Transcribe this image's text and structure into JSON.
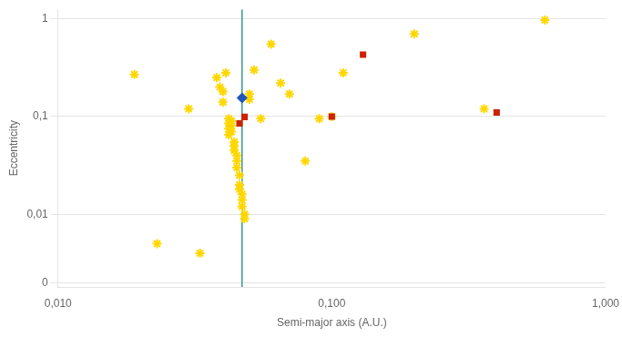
{
  "chart_data": {
    "type": "scatter",
    "xlabel": "Semi-major axis (A.U.)",
    "ylabel": "Eccentricity",
    "log": true,
    "xlim": [
      0.01,
      1.0
    ],
    "ylim": [
      0.0018,
      1.25
    ],
    "xticks": [
      {
        "value": 0.01,
        "label": "0,010"
      },
      {
        "value": 0.1,
        "label": "0,100"
      },
      {
        "value": 1.0,
        "label": "1,000"
      }
    ],
    "yticks": [
      {
        "value": 0.002,
        "label": "0"
      },
      {
        "value": 0.01,
        "label": "0,01"
      },
      {
        "value": 0.1,
        "label": "0,1"
      },
      1
    ],
    "grid": "y",
    "series": [
      {
        "color": "#FFD700",
        "marker": "star",
        "x": [
          0.019,
          0.023,
          0.03,
          0.033,
          0.038,
          0.039,
          0.04,
          0.04,
          0.041,
          0.042,
          0.042,
          0.042,
          0.042,
          0.043,
          0.043,
          0.043,
          0.044,
          0.044,
          0.044,
          0.045,
          0.045,
          0.045,
          0.046,
          0.046,
          0.046,
          0.047,
          0.047,
          0.047,
          0.048,
          0.048,
          0.05,
          0.05,
          0.052,
          0.055,
          0.06,
          0.065,
          0.07,
          0.08,
          0.09,
          0.1,
          0.11,
          0.2,
          0.36,
          0.6
        ],
        "values": [
          0.27,
          0.005,
          0.12,
          0.004,
          0.25,
          0.2,
          0.18,
          0.14,
          0.28,
          0.095,
          0.085,
          0.075,
          0.065,
          0.09,
          0.08,
          0.07,
          0.055,
          0.05,
          0.045,
          0.04,
          0.035,
          0.03,
          0.025,
          0.02,
          0.018,
          0.016,
          0.014,
          0.012,
          0.01,
          0.009,
          0.17,
          0.15,
          0.3,
          0.095,
          0.55,
          0.22,
          0.17,
          0.035,
          0.095,
          0.1,
          0.28,
          0.7,
          0.12,
          0.97
        ]
      },
      {
        "color": "#CC2200",
        "marker": "square",
        "x": [
          0.046,
          0.048,
          0.1,
          0.13,
          0.4
        ],
        "values": [
          0.085,
          0.099,
          0.1,
          0.43,
          0.11
        ]
      },
      {
        "color": "#2255BB",
        "marker": "diamond",
        "x": [
          0.047
        ],
        "values": [
          0.155
        ]
      },
      {
        "type": "vline",
        "color": "#3a9a8a",
        "x": [
          0.047
        ]
      }
    ]
  }
}
